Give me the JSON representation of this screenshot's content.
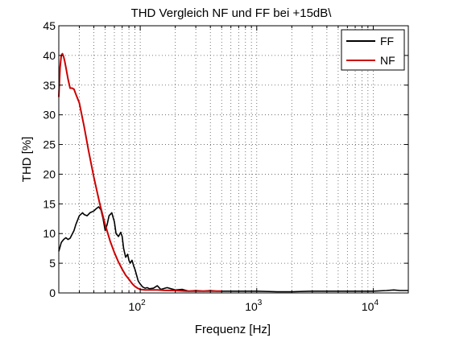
{
  "chart_data": {
    "type": "line",
    "title": "THD Vergleich NF und FF bei +15dB\\",
    "xlabel": "Frequenz [Hz]",
    "ylabel": "THD [%]",
    "xscale": "log",
    "xlim": [
      20,
      20000
    ],
    "ylim": [
      0,
      45
    ],
    "x_tick_labels": [
      {
        "base": "10",
        "exp": "2",
        "value": 100
      },
      {
        "base": "10",
        "exp": "3",
        "value": 1000
      },
      {
        "base": "10",
        "exp": "4",
        "value": 10000
      }
    ],
    "y_ticks": [
      0,
      5,
      10,
      15,
      20,
      25,
      30,
      35,
      40,
      45
    ],
    "grid": true,
    "legend_position": "top-right",
    "series": [
      {
        "name": "FF",
        "color": "#000000",
        "x": [
          20,
          21,
          22,
          23,
          24,
          25,
          27,
          28,
          30,
          32,
          33,
          35,
          37,
          40,
          42,
          44,
          46,
          48,
          50,
          52,
          54,
          57,
          60,
          62,
          65,
          68,
          70,
          72,
          75,
          78,
          80,
          82,
          85,
          88,
          90,
          93,
          96,
          100,
          105,
          110,
          115,
          120,
          130,
          140,
          150,
          170,
          200,
          230,
          260,
          300,
          350,
          400,
          450,
          500,
          600,
          700,
          800,
          1000,
          1500,
          2000,
          3000,
          5000,
          7000,
          10000,
          13000,
          15000,
          17000,
          20000
        ],
        "values": [
          7.0,
          8.5,
          9.0,
          9.3,
          9.0,
          9.2,
          10.5,
          11.5,
          13.0,
          13.5,
          13.2,
          13.0,
          13.5,
          13.8,
          14.2,
          14.5,
          14.0,
          12.5,
          10.5,
          11.5,
          13.0,
          13.5,
          12.0,
          10.0,
          9.5,
          10.2,
          9.5,
          7.5,
          6.0,
          6.5,
          5.5,
          5.0,
          5.5,
          4.5,
          4.0,
          3.0,
          2.0,
          1.5,
          1.0,
          0.8,
          0.9,
          0.7,
          0.8,
          1.2,
          0.6,
          0.9,
          0.5,
          0.6,
          0.3,
          0.4,
          0.3,
          0.4,
          0.3,
          0.3,
          0.3,
          0.3,
          0.3,
          0.3,
          0.2,
          0.2,
          0.3,
          0.3,
          0.3,
          0.3,
          0.4,
          0.5,
          0.4,
          0.4
        ]
      },
      {
        "name": "NF",
        "color": "#cc0000",
        "x": [
          20,
          20.5,
          21,
          21.5,
          22,
          22.5,
          23,
          24,
          25,
          26,
          27,
          28,
          30,
          33,
          36,
          40,
          45,
          50,
          55,
          60,
          65,
          70,
          75,
          80,
          85,
          90,
          95,
          100,
          110,
          120,
          140,
          160,
          200,
          250,
          300,
          400,
          500
        ],
        "values": [
          33.0,
          38.0,
          40.0,
          40.3,
          39.8,
          39.0,
          38.0,
          36.0,
          34.5,
          34.5,
          34.3,
          33.5,
          32.0,
          28.0,
          24.0,
          19.5,
          15.0,
          11.5,
          8.8,
          6.8,
          5.2,
          4.0,
          3.0,
          2.3,
          1.6,
          1.1,
          0.8,
          0.6,
          0.5,
          0.5,
          0.5,
          0.45,
          0.4,
          0.3,
          0.3,
          0.3,
          0.3
        ]
      }
    ]
  }
}
